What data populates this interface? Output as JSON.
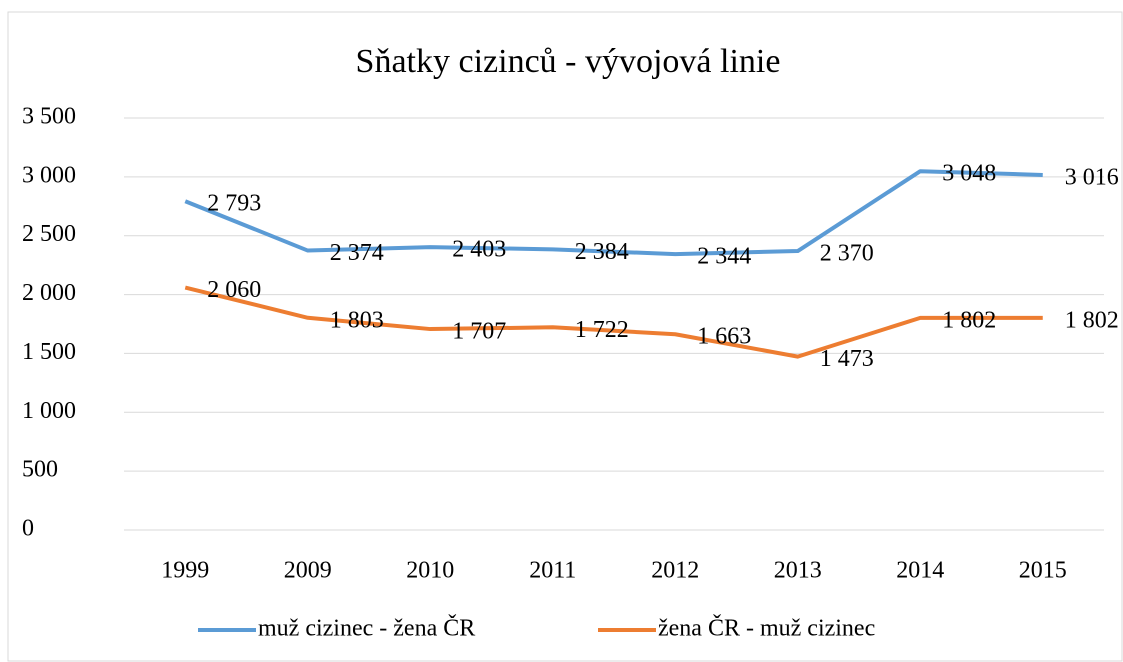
{
  "chart_data": {
    "type": "line",
    "title": "Sňatky cizinců - vývojová linie",
    "categories": [
      "1999",
      "2009",
      "2010",
      "2011",
      "2012",
      "2013",
      "2014",
      "2015"
    ],
    "series": [
      {
        "name": "muž cizinec - žena ČR",
        "color": "#5b9bd5",
        "values": [
          2793,
          2374,
          2403,
          2384,
          2344,
          2370,
          3048,
          3016
        ],
        "value_labels": [
          "2 793",
          "2 374",
          "2 403",
          "2 384",
          "2 344",
          "2 370",
          "3 048",
          "3 016"
        ]
      },
      {
        "name": "žena ČR - muž cizinec",
        "color": "#ed7d31",
        "values": [
          2060,
          1803,
          1707,
          1722,
          1663,
          1473,
          1802,
          1802
        ],
        "value_labels": [
          "2 060",
          "1 803",
          "1 707",
          "1 722",
          "1 663",
          "1 473",
          "1 802",
          "1 802"
        ]
      }
    ],
    "ylim": [
      0,
      3500
    ],
    "yticks": [
      0,
      500,
      {
        "value": 1000,
        "label": "1 000"
      },
      {
        "value": 1500,
        "label": "1 500"
      },
      {
        "value": 2000,
        "label": "2 000"
      },
      {
        "value": 2500,
        "label": "2 500"
      },
      {
        "value": 3000,
        "label": "3 000"
      },
      {
        "value": 3500,
        "label": "3 500"
      }
    ],
    "grid": true,
    "legend": "bottom"
  }
}
